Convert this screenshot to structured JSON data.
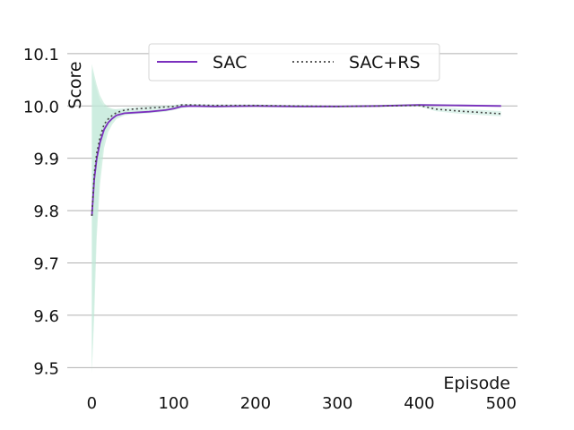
{
  "chart_data": {
    "type": "line",
    "title": "",
    "xlabel": "Episode",
    "ylabel": "Score",
    "xlim": [
      -30,
      520
    ],
    "ylim": [
      9.48,
      10.11
    ],
    "xticks": [
      0,
      100,
      200,
      300,
      400,
      500
    ],
    "yticks": [
      9.5,
      9.6,
      9.7,
      9.8,
      9.9,
      10.0,
      10.1
    ],
    "xtick_labels": [
      "0",
      "100",
      "200",
      "300",
      "400",
      "500"
    ],
    "ytick_labels": [
      "9.5",
      "9.6",
      "9.7",
      "9.8",
      "9.9",
      "10.0",
      "10.1"
    ],
    "grid": "horizontal",
    "legend_position": "top-center",
    "series": [
      {
        "name": "SAC",
        "style": "solid",
        "color": "#7b2fbe",
        "band_color": "#b8e6d0",
        "x": [
          0,
          3,
          6,
          10,
          15,
          20,
          25,
          30,
          40,
          50,
          70,
          90,
          100,
          110,
          120,
          150,
          200,
          250,
          300,
          350,
          400,
          450,
          500
        ],
        "y": [
          9.79,
          9.86,
          9.9,
          9.93,
          9.955,
          9.968,
          9.976,
          9.982,
          9.986,
          9.987,
          9.989,
          9.992,
          9.995,
          9.999,
          10.0,
          9.999,
          10.0,
          9.999,
          9.999,
          10.0,
          10.002,
          10.001,
          10.0
        ],
        "lower": [
          9.49,
          9.6,
          9.75,
          9.85,
          9.92,
          9.95,
          9.965,
          9.975,
          9.982,
          9.984,
          9.986,
          9.989,
          9.992,
          9.996,
          9.998,
          9.997,
          9.998,
          9.997,
          9.997,
          9.998,
          10.0,
          9.999,
          9.998
        ],
        "upper": [
          10.08,
          10.06,
          10.04,
          10.02,
          10.005,
          9.998,
          9.995,
          9.993,
          9.992,
          9.991,
          9.993,
          9.995,
          9.998,
          10.002,
          10.002,
          10.001,
          10.002,
          10.001,
          10.001,
          10.002,
          10.004,
          10.003,
          10.002
        ]
      },
      {
        "name": "SAC+RS",
        "style": "dotted",
        "color": "#444444",
        "band_color": "#c4e9dc",
        "x": [
          0,
          3,
          6,
          10,
          15,
          20,
          25,
          30,
          40,
          50,
          70,
          90,
          100,
          110,
          120,
          150,
          200,
          250,
          300,
          350,
          400,
          420,
          450,
          500
        ],
        "y": [
          9.79,
          9.87,
          9.91,
          9.94,
          9.965,
          9.975,
          9.982,
          9.987,
          9.992,
          9.994,
          9.996,
          9.998,
          9.999,
          10.002,
          10.002,
          10.001,
          10.001,
          10.0,
          9.999,
          10.0,
          10.001,
          9.994,
          9.99,
          9.985
        ],
        "lower": [
          9.5,
          9.65,
          9.78,
          9.88,
          9.935,
          9.96,
          9.972,
          9.98,
          9.987,
          9.99,
          9.993,
          9.995,
          9.996,
          9.999,
          9.999,
          9.998,
          9.999,
          9.998,
          9.997,
          9.998,
          9.999,
          9.99,
          9.985,
          9.98
        ],
        "upper": [
          10.07,
          10.05,
          10.03,
          10.01,
          10.0,
          9.995,
          9.993,
          9.994,
          9.996,
          9.997,
          9.999,
          10.001,
          10.002,
          10.004,
          10.004,
          10.003,
          10.003,
          10.002,
          10.001,
          10.002,
          10.003,
          9.998,
          9.995,
          9.99
        ]
      }
    ]
  }
}
